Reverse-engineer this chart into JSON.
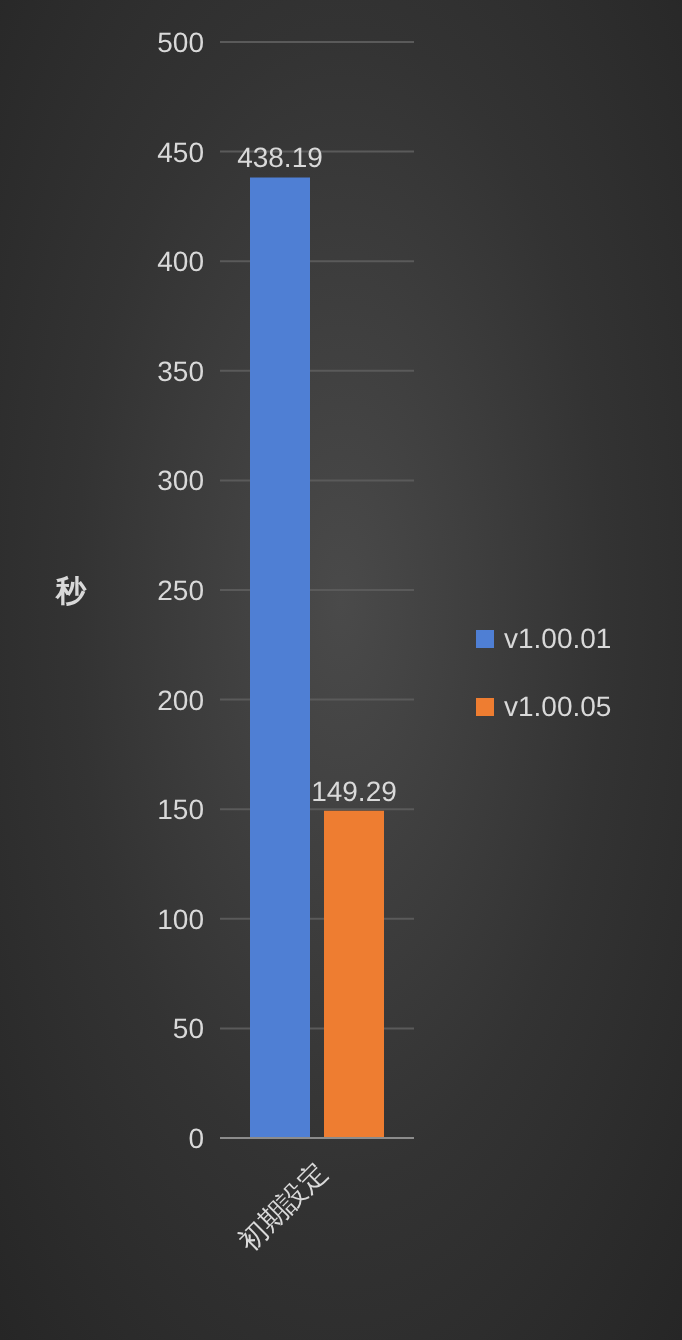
{
  "chart_data": {
    "type": "bar",
    "ylabel": "秒",
    "categories": [
      "初期設定"
    ],
    "series": [
      {
        "name": "v1.00.01",
        "color": "#4f7fd4",
        "values": [
          438.19
        ]
      },
      {
        "name": "v1.00.05",
        "color": "#ee7d31",
        "values": [
          149.29
        ]
      }
    ],
    "ylim": [
      0,
      500
    ],
    "yticks": [
      0,
      50,
      100,
      150,
      200,
      250,
      300,
      350,
      400,
      450,
      500
    ],
    "grid": "y",
    "legend": "right",
    "data_labels": true
  }
}
